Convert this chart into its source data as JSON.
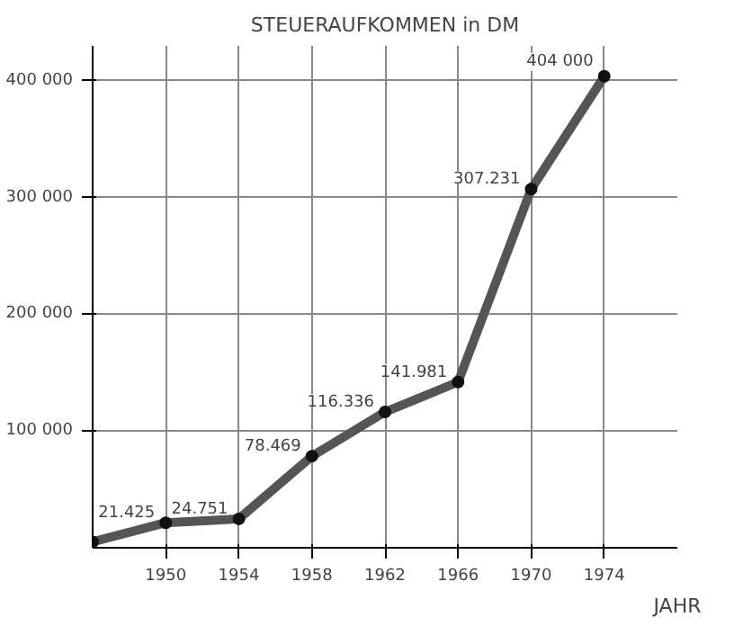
{
  "chart_data": {
    "type": "line",
    "title": "STEUERAUFKOMMEN in DM",
    "xlabel": "JAHR",
    "x": [
      1946,
      1950,
      1954,
      1958,
      1962,
      1966,
      1970,
      1974
    ],
    "series": [
      {
        "color": "#555555",
        "values": [
          5000,
          21425,
          24751,
          78469,
          116336,
          141981,
          307231,
          404000
        ],
        "value_labels": [
          null,
          "21.425",
          "24.751",
          "78.469",
          "116.336",
          "141.981",
          "307.231",
          "404 000"
        ]
      }
    ],
    "xlim": [
      1946,
      1978
    ],
    "ylim": [
      0,
      430000
    ],
    "xticks": [
      1950,
      1954,
      1958,
      1962,
      1966,
      1970,
      1974
    ],
    "yticks": [
      {
        "value": 100000,
        "label": "100 000"
      },
      {
        "value": 200000,
        "label": "200 000"
      },
      {
        "value": 300000,
        "label": "300 000"
      },
      {
        "value": 400000,
        "label": "400 000"
      }
    ],
    "grid": true,
    "marker": "circle",
    "line_style": "solid"
  }
}
